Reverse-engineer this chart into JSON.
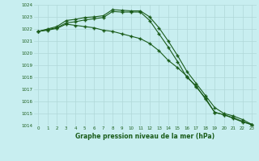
{
  "x": [
    0,
    1,
    2,
    3,
    4,
    5,
    6,
    7,
    8,
    9,
    10,
    11,
    12,
    13,
    14,
    15,
    16,
    17,
    18,
    19,
    20,
    21,
    22,
    23
  ],
  "line1": [
    1021.8,
    1022.0,
    1022.2,
    1022.7,
    1022.8,
    1022.95,
    1023.0,
    1023.1,
    1023.6,
    1023.55,
    1023.5,
    1023.5,
    1023.0,
    1022.1,
    1021.0,
    1019.8,
    1018.5,
    1017.5,
    1016.5,
    1015.5,
    1015.0,
    1014.8,
    1014.5,
    1014.1
  ],
  "line2": [
    1021.8,
    1021.95,
    1022.1,
    1022.5,
    1022.6,
    1022.75,
    1022.85,
    1022.95,
    1023.45,
    1023.4,
    1023.4,
    1023.4,
    1022.7,
    1021.6,
    1020.5,
    1019.3,
    1018.0,
    1017.3,
    1016.2,
    1015.1,
    1014.9,
    1014.65,
    1014.35,
    1014.05
  ],
  "line3": [
    1021.8,
    1021.9,
    1022.05,
    1022.4,
    1022.3,
    1022.2,
    1022.1,
    1021.9,
    1021.8,
    1021.6,
    1021.4,
    1021.2,
    1020.8,
    1020.2,
    1019.4,
    1018.8,
    1018.1,
    1017.2,
    1016.3,
    1015.1,
    1014.9,
    1014.6,
    1014.3,
    1014.1
  ],
  "ylim": [
    1014,
    1024
  ],
  "yticks": [
    1014,
    1015,
    1016,
    1017,
    1018,
    1019,
    1020,
    1021,
    1022,
    1023,
    1024
  ],
  "line_color": "#1a5c1a",
  "bg_color": "#c8eef0",
  "grid_color": "#b0d8d8",
  "xlabel": "Graphe pression niveau de la mer (hPa)",
  "xlabel_color": "#1a5c1a",
  "fig_width": 3.2,
  "fig_height": 2.0,
  "dpi": 100
}
